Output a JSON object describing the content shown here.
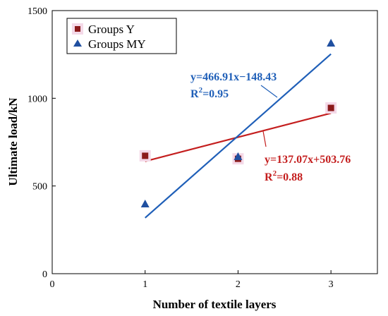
{
  "chart_data": {
    "type": "scatter",
    "xlabel": "Number of textile layers",
    "ylabel": "Ultimate load/kN",
    "xlim": [
      0,
      3.5
    ],
    "ylim": [
      0,
      1500
    ],
    "x_ticks": [
      "0",
      "1",
      "2",
      "3"
    ],
    "y_ticks": [
      "0",
      "500",
      "1000",
      "1500"
    ],
    "grid": false,
    "legend_position": "top-left",
    "series": [
      {
        "name": "Groups Y",
        "marker": "square",
        "color": "#8b1a1a",
        "points": [
          {
            "x": 1,
            "y": 672
          },
          {
            "x": 2,
            "y": 655
          },
          {
            "x": 3,
            "y": 945
          }
        ]
      },
      {
        "name": "Groups MY",
        "marker": "triangle",
        "color": "#1f4fa0",
        "points": [
          {
            "x": 1,
            "y": 398
          },
          {
            "x": 2,
            "y": 668
          },
          {
            "x": 3,
            "y": 1315
          }
        ]
      }
    ],
    "fit_lines": [
      {
        "series": "Groups Y",
        "slope": 137.07,
        "intercept": 503.76,
        "x_range": [
          1,
          3
        ],
        "color": "#c41e1e"
      },
      {
        "series": "Groups MY",
        "slope": 466.91,
        "intercept": -148.43,
        "x_range": [
          1,
          3
        ],
        "color": "#1f5fb8"
      }
    ],
    "annotations": [
      {
        "series": "Groups MY",
        "equation": "y=466.91x−148.43",
        "r2": "R²=0.95",
        "color": "#1f5fb8"
      },
      {
        "series": "Groups Y",
        "equation": "y=137.07x+503.76",
        "r2": "R²=0.88",
        "color": "#c41e1e"
      }
    ]
  }
}
